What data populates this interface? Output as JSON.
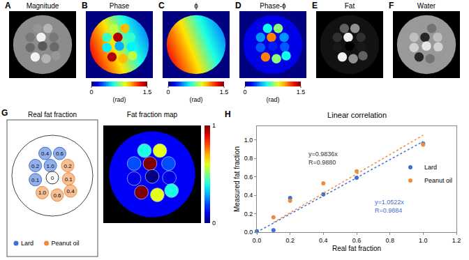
{
  "figure": {
    "panels": [
      {
        "letter": "A",
        "title": "Magnitude"
      },
      {
        "letter": "B",
        "title": "Phase",
        "colorbar": {
          "range": [
            0,
            1.5
          ],
          "ticks": [
            0,
            1.5
          ],
          "label": "(rad)"
        }
      },
      {
        "letter": "C",
        "title": "ϕ",
        "colorbar": {
          "range": [
            0,
            1.5
          ],
          "ticks": [
            0,
            1.5
          ],
          "label": "(rad)"
        }
      },
      {
        "letter": "D",
        "title": "Phase-ϕ",
        "colorbar": {
          "range": [
            0,
            1.5
          ],
          "ticks": [
            0,
            1.5
          ],
          "label": "(rad)"
        }
      },
      {
        "letter": "E",
        "title": "Fat"
      },
      {
        "letter": "F",
        "title": "Water"
      }
    ],
    "G": {
      "letter": "G",
      "left_title": "Real fat fraction",
      "right_title": "Fat fraction map",
      "legend": [
        {
          "name": "Lard",
          "color": "#3d6fd6"
        },
        {
          "name": "Peanut oil",
          "color": "#f08a3c"
        }
      ],
      "vials": [
        {
          "material": "Lard",
          "value": 0.4,
          "label": "0.4"
        },
        {
          "material": "Lard",
          "value": 0.6,
          "label": "0.6"
        },
        {
          "material": "Lard",
          "value": 0.2,
          "label": "0.2"
        },
        {
          "material": "Lard",
          "value": 1,
          "label": "1.0"
        },
        {
          "material": "Peanut oil",
          "value": 0.2,
          "label": "0.2"
        },
        {
          "material": "Lard",
          "value": 0.1,
          "label": "0.1"
        },
        {
          "material": null,
          "value": 0,
          "label": "0"
        },
        {
          "material": "Peanut oil",
          "value": 0.1,
          "label": "0.1"
        },
        {
          "material": "Peanut oil",
          "value": 1,
          "label": "1.0"
        },
        {
          "material": "Peanut oil",
          "value": 0.6,
          "label": "0.6"
        },
        {
          "material": "Peanut oil",
          "value": 0.4,
          "label": "0.4"
        }
      ],
      "colorbar": {
        "range": [
          0,
          1
        ],
        "ticks": [
          0,
          1
        ]
      }
    },
    "H_letter": "H"
  },
  "chart_data": {
    "type": "scatter",
    "title": "Linear correlation",
    "x_label": "Real fat fraction",
    "y_label": "Measured fat fraction",
    "xlim": [
      0,
      1.2
    ],
    "xticks": [
      {
        "value": 0,
        "label": "0.0"
      },
      0.2,
      0.4,
      0.6,
      0.8,
      {
        "value": 1,
        "label": "1.0"
      },
      1.2
    ],
    "ylim": [
      0,
      1.15
    ],
    "yticks": [
      {
        "value": 0,
        "label": "0.0"
      },
      0.2,
      0.4,
      0.6,
      0.8,
      {
        "value": 1,
        "label": "1.0"
      }
    ],
    "grid": false,
    "legend": "right",
    "series": [
      {
        "name": "Lard",
        "color": "#3d6fd6",
        "marker": "circle",
        "x": [
          0,
          0.1,
          0.2,
          0.4,
          0.6,
          1.0
        ],
        "values": [
          0.01,
          0.02,
          0.37,
          0.41,
          0.59,
          0.96
        ],
        "fit": {
          "slope": 0.9836,
          "line_style": "dotted"
        }
      },
      {
        "name": "Peanut oil",
        "color": "#f08a3c",
        "marker": "circle",
        "x": [
          0.1,
          0.2,
          0.4,
          0.6,
          1.0
        ],
        "values": [
          0.16,
          0.34,
          0.53,
          0.66,
          0.95
        ],
        "fit": {
          "slope": 1.0522,
          "line_style": "dotted"
        }
      }
    ],
    "annotations": [
      {
        "text": [
          "y=0.9836x",
          "R=0.9880"
        ],
        "x": 0.3,
        "y": 0.9,
        "color": "#333333"
      },
      {
        "text": [
          "y=1.0522x",
          "R=0.9884"
        ],
        "x": 0.7,
        "y": 0.38,
        "color": "#3d6fd6"
      }
    ]
  }
}
